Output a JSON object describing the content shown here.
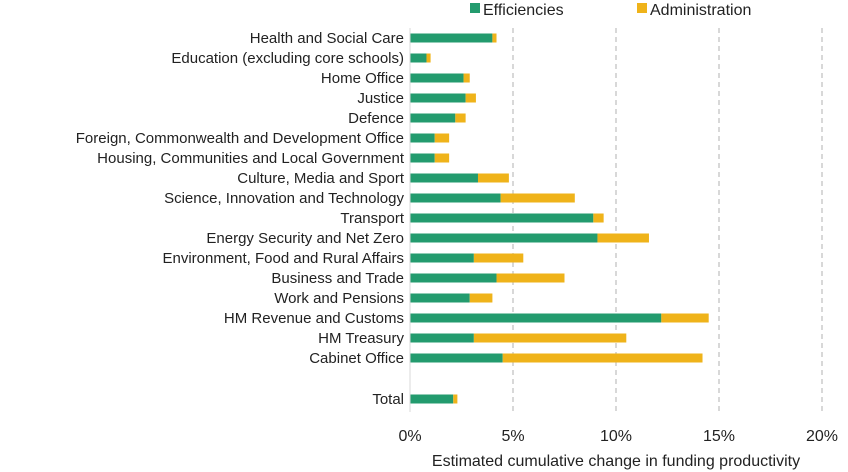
{
  "chart_data": {
    "type": "bar",
    "orientation": "horizontal",
    "stacked": true,
    "categories": [
      "Health and Social Care",
      "Education (excluding core schools)",
      "Home Office",
      "Justice",
      "Defence",
      "Foreign, Commonwealth and Development Office",
      "Housing, Communities and Local Government",
      "Culture, Media and Sport",
      "Science, Innovation and Technology",
      "Transport",
      "Energy Security and Net Zero",
      "Environment, Food and Rural Affairs",
      "Business and Trade",
      "Work and Pensions",
      "HM Revenue and Customs",
      "HM Treasury",
      "Cabinet Office",
      "Total"
    ],
    "series": [
      {
        "name": "Efficiencies",
        "color": "#239b6e",
        "values": [
          4.0,
          0.8,
          2.6,
          2.7,
          2.2,
          1.2,
          1.2,
          3.3,
          4.4,
          8.9,
          9.1,
          3.1,
          4.2,
          2.9,
          12.2,
          3.1,
          4.5,
          2.1
        ]
      },
      {
        "name": "Administration",
        "color": "#efb31a",
        "values": [
          0.2,
          0.2,
          0.3,
          0.5,
          0.5,
          0.7,
          0.7,
          1.5,
          3.6,
          0.5,
          2.5,
          2.4,
          3.3,
          1.1,
          2.3,
          7.4,
          9.7,
          0.2
        ]
      }
    ],
    "xlabel": "Estimated cumulative change in funding productivity",
    "ylabel": "",
    "xlim": [
      0,
      20
    ],
    "xticks": [
      0,
      5,
      10,
      15,
      20
    ],
    "xtick_labels": [
      "0%",
      "5%",
      "10%",
      "15%",
      "20%"
    ],
    "grid": "vertical-dashed",
    "legend_position": "top"
  }
}
